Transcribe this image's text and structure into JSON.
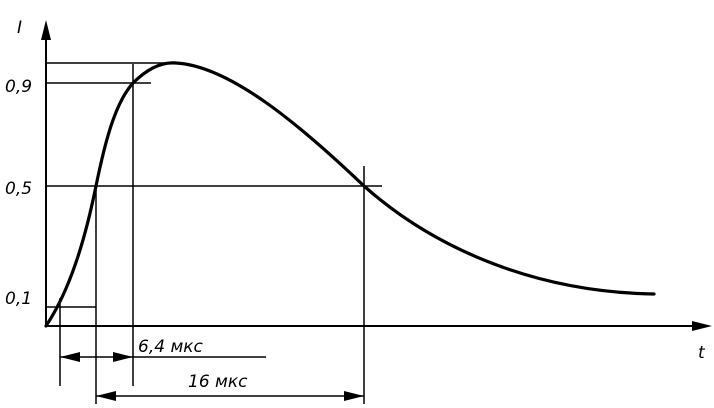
{
  "diagram": {
    "y_axis_label": "I",
    "x_axis_label": "t",
    "tick_labels": [
      "0,9",
      "0,5",
      "0,1"
    ],
    "dimension_labels": {
      "front_time": "6,4 мкс",
      "half_width": "16 мкс"
    },
    "line_color": "#000000",
    "background": "#ffffff"
  },
  "chart_data": {
    "type": "line",
    "title": "",
    "xlabel": "t",
    "ylabel": "I",
    "y_ticks": [
      0.1,
      0.5,
      0.9
    ],
    "y_tick_labels": [
      "0,1",
      "0,5",
      "0,9"
    ],
    "series": [
      {
        "x": [
          0,
          2.1,
          4.2,
          6.9,
          9.3,
          12.1,
          16.1,
          21.0,
          26.0,
          30.8
        ],
        "y": [
          0.0,
          0.15,
          0.5,
          0.86,
          1.0,
          0.92,
          0.5,
          0.22,
          0.11,
          0.07
        ]
      }
    ],
    "annotations": [
      {
        "text": "6,4 мкс",
        "from_x": 0.75,
        "to_x": 7.1
      },
      {
        "text": "16 мкс",
        "from_x": 4.2,
        "to_x": 20.2
      }
    ],
    "grid": false
  }
}
